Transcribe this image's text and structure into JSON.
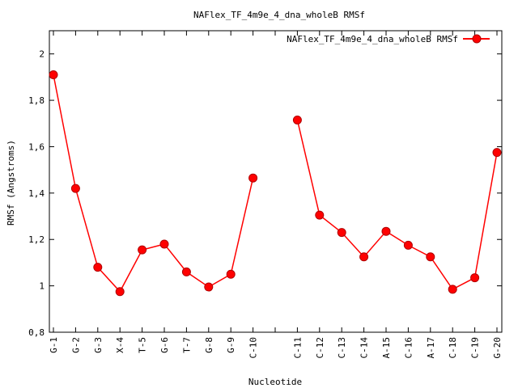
{
  "chart_data": {
    "type": "line",
    "title": "NAFlex_TF_4m9e_4_dna_wholeB RMSf",
    "xlabel": "Nucleotide",
    "ylabel": "RMSf (Angstroms)",
    "ylim": [
      0.8,
      2.1
    ],
    "yticks": [
      0.8,
      1,
      1.2,
      1.4,
      1.6,
      1.8,
      2
    ],
    "ytick_labels": [
      "0,8",
      "1",
      "1,2",
      "1,4",
      "1,6",
      "1,8",
      "2"
    ],
    "legend_position": "top-right",
    "grid": false,
    "series_color": "#ff0000",
    "categories": [
      "G-1",
      "G-2",
      "G-3",
      "X-4",
      "T-5",
      "G-6",
      "T-7",
      "G-8",
      "G-9",
      "C-10",
      "",
      "C-11",
      "C-12",
      "C-13",
      "C-14",
      "A-15",
      "C-16",
      "A-17",
      "C-18",
      "C-19",
      "G-20"
    ],
    "series": [
      {
        "name": "NAFlex_TF_4m9e_4_dna_wholeB RMSf",
        "values": [
          1.91,
          1.42,
          1.08,
          0.975,
          1.155,
          1.18,
          1.06,
          0.995,
          1.05,
          1.465,
          null,
          1.715,
          1.305,
          1.23,
          1.125,
          1.235,
          1.175,
          1.125,
          0.985,
          1.035,
          1.575
        ]
      }
    ]
  }
}
